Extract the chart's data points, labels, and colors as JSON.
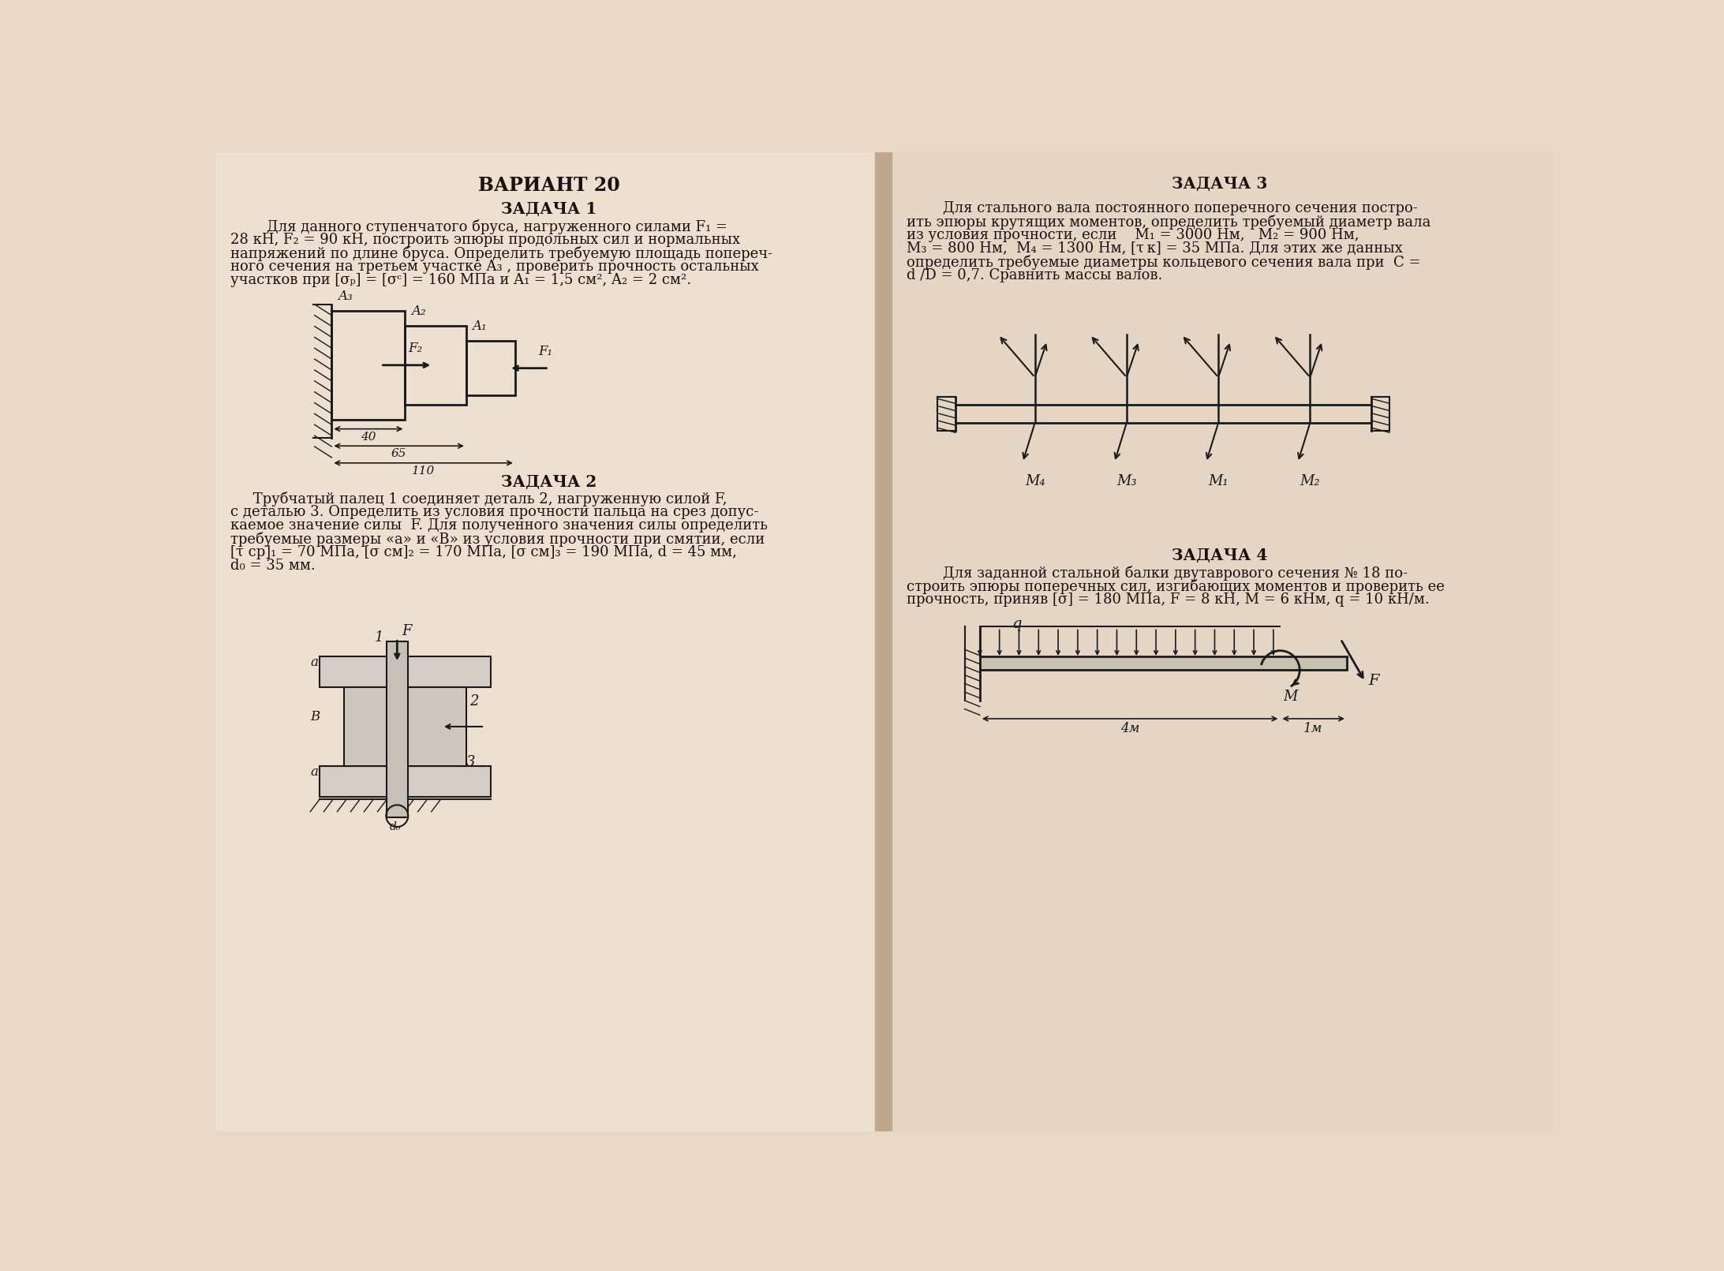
{
  "title": "ВАРИАНТ 20",
  "page_bg": "#e8d8c8",
  "left_bg": "#ede0d0",
  "right_bg": "#e5d5c5",
  "spine_color": "#c0a890",
  "zadacha1_title": "ЗАДАЧА 1",
  "zadacha1_line1": "        Для данного ступенчатого бруса, нагруженного силами F₁ =",
  "zadacha1_line2": "28 кН, F₂ = 90 кН, построить эпюры продольных сил и нормальных",
  "zadacha1_line3": "напряжений по длине бруса. Определить требуемую площадь попереч-",
  "zadacha1_line4": "ного сечения на третьем участке A₃ , проверить прочность остальных",
  "zadacha1_line5": "участков при [σₚ] = [σᶜ] = 160 МПа и A₁ = 1,5 см², A₂ = 2 см².",
  "zadacha2_title": "ЗАДАЧА 2",
  "zadacha2_line1": "     Трубчатый палец 1 соединяет деталь 2, нагруженную силой F,",
  "zadacha2_line2": "с деталью 3. Определить из условия прочности пальца на срез допус-",
  "zadacha2_line3": "каемое значение силы  F. Для полученного значения силы определить",
  "zadacha2_line4": "требуемые размеры «а» и «В» из условия прочности при смятии, если",
  "zadacha2_line5": "[τ ср]₁ = 70 МПа, [σ см]₂ = 170 МПа, [σ см]₃ = 190 МПа, d = 45 мм,",
  "zadacha2_line6": "d₀ = 35 мм.",
  "zadacha3_title": "ЗАДАЧА 3",
  "zadacha3_line1": "        Для стального вала постоянного поперечного сечения постро-",
  "zadacha3_line2": "ить эпюры крутящих моментов, определить требуемый диаметр вала",
  "zadacha3_line3": "из условия прочности, если    M₁ = 3000 Нм,   M₂ = 900 Нм,",
  "zadacha3_line4": "M₃ = 800 Нм,  M₄ = 1300 Нм, [τ к] = 35 МПа. Для этих же данных",
  "zadacha3_line5": "определить требуемые диаметры кольцевого сечения вала при  С =",
  "zadacha3_line6": "d /D = 0,7. Сравнить массы валов.",
  "zadacha4_title": "ЗАДАЧА 4",
  "zadacha4_line1": "        Для заданной стальной балки двутаврового сечения № 18 по-",
  "zadacha4_line2": "строить эпюры поперечных сил, изгибающих моментов и проверить ее",
  "zadacha4_line3": "прочность, приняв [σ] = 180 МПа, F = 8 кН, M = 6 кНм, q = 10 кН/м.",
  "text_color": "#1a1010",
  "draw_color": "#1a1a1a"
}
